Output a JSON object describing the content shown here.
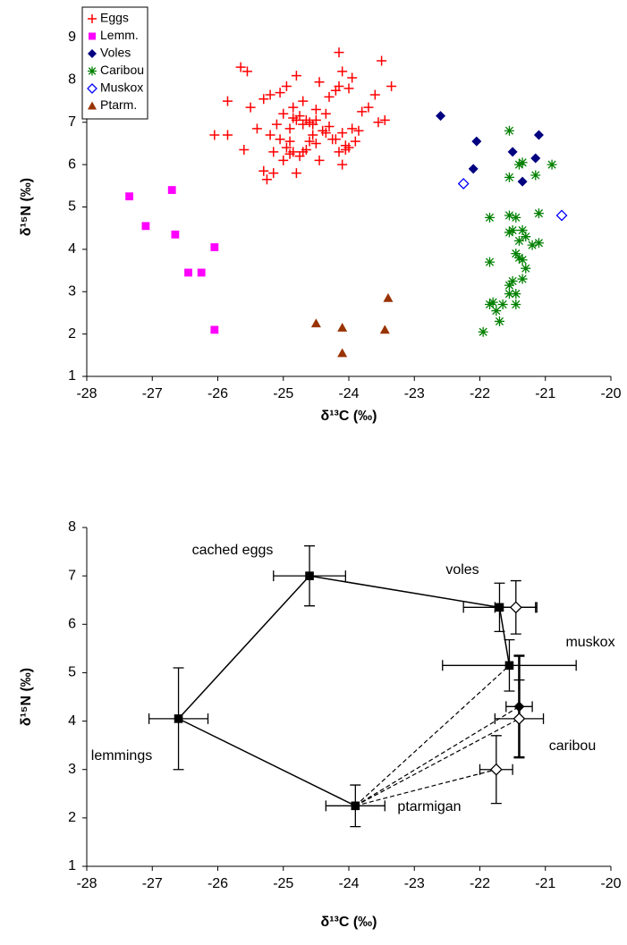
{
  "chart_data": [
    {
      "type": "scatter",
      "xlabel": "δ¹³C (‰)",
      "ylabel": "δ¹⁵N (‰)",
      "xlim": [
        -28,
        -20
      ],
      "ylim": [
        1,
        9
      ],
      "xticks": [
        -28,
        -27,
        -26,
        -25,
        -24,
        -23,
        -22,
        -21,
        -20
      ],
      "yticks": [
        1,
        2,
        3,
        4,
        5,
        6,
        7,
        8,
        9
      ],
      "legend": "top-left",
      "series": [
        {
          "name": "Eggs",
          "color": "#ff0000",
          "marker": "plus",
          "x": [
            -25.65,
            -25.55,
            -24.8,
            -24.15,
            -24.1,
            -23.95,
            -23.5,
            -23.35,
            -25.85,
            -25.5,
            -25.3,
            -25.2,
            -25.05,
            -24.95,
            -24.85,
            -24.7,
            -24.5,
            -24.45,
            -24.3,
            -24.2,
            -24.15,
            -24.0,
            -23.8,
            -23.7,
            -23.6,
            -23.55,
            -23.45,
            -26.05,
            -25.85,
            -25.6,
            -25.4,
            -25.2,
            -25.1,
            -25.0,
            -24.9,
            -24.85,
            -24.8,
            -24.75,
            -24.7,
            -24.65,
            -24.6,
            -24.55,
            -24.5,
            -24.4,
            -24.35,
            -24.3,
            -24.25,
            -24.1,
            -24.05,
            -23.95,
            -23.9,
            -23.85,
            -25.3,
            -25.25,
            -25.15,
            -25.0,
            -24.95,
            -24.9,
            -24.85,
            -24.8,
            -24.75,
            -24.7,
            -24.6,
            -24.5,
            -24.45,
            -24.2,
            -24.1,
            -24.05,
            -24.9,
            -25.05,
            -24.65,
            -24.55,
            -24.35,
            -24.15,
            -24.0,
            -25.15
          ],
          "y": [
            8.3,
            8.2,
            8.1,
            8.65,
            8.2,
            8.05,
            8.45,
            7.85,
            7.5,
            7.35,
            7.55,
            7.65,
            7.7,
            7.85,
            7.35,
            7.5,
            7.3,
            7.95,
            7.6,
            7.75,
            7.85,
            7.8,
            7.25,
            7.35,
            7.65,
            7.0,
            7.05,
            6.7,
            6.7,
            6.35,
            6.85,
            6.7,
            6.95,
            7.2,
            6.85,
            7.1,
            7.05,
            7.15,
            6.95,
            7.05,
            7.0,
            6.95,
            7.05,
            6.8,
            7.2,
            6.9,
            6.6,
            6.75,
            6.45,
            6.85,
            6.55,
            6.8,
            5.85,
            5.65,
            5.8,
            6.1,
            6.4,
            6.25,
            6.3,
            5.8,
            6.2,
            6.3,
            6.55,
            6.5,
            6.1,
            6.6,
            6.0,
            6.35,
            6.55,
            6.6,
            6.35,
            6.7,
            6.75,
            6.3,
            6.4,
            6.3
          ]
        },
        {
          "name": "Lemm.",
          "color": "#ff00ff",
          "marker": "square",
          "x": [
            -27.35,
            -27.1,
            -26.7,
            -26.65,
            -26.05,
            -26.45,
            -26.25,
            -26.05
          ],
          "y": [
            5.25,
            4.55,
            5.4,
            4.35,
            4.05,
            3.45,
            3.45,
            2.1
          ]
        },
        {
          "name": "Voles",
          "color": "#000080",
          "marker": "diamond",
          "x": [
            -22.6,
            -22.05,
            -21.5,
            -21.1,
            -22.1,
            -21.15,
            -21.35
          ],
          "y": [
            7.15,
            6.55,
            6.3,
            6.7,
            5.9,
            6.15,
            5.6
          ]
        },
        {
          "name": "Caribou",
          "color": "#008000",
          "marker": "asterisk",
          "x": [
            -21.55,
            -21.4,
            -21.35,
            -21.55,
            -21.15,
            -20.9,
            -21.85,
            -21.55,
            -21.45,
            -21.5,
            -21.55,
            -21.35,
            -21.3,
            -21.4,
            -21.1,
            -21.1,
            -21.2,
            -21.85,
            -21.45,
            -21.4,
            -21.35,
            -21.3,
            -21.5,
            -21.35,
            -21.55,
            -21.55,
            -21.45,
            -21.45,
            -21.65,
            -21.85,
            -21.8,
            -21.75,
            -21.7,
            -21.95
          ],
          "y": [
            6.8,
            6.0,
            6.05,
            5.7,
            5.75,
            6.0,
            4.75,
            4.8,
            4.75,
            4.45,
            4.4,
            4.45,
            4.3,
            4.2,
            4.85,
            4.15,
            4.1,
            3.7,
            3.9,
            3.8,
            3.75,
            3.55,
            3.25,
            3.3,
            3.15,
            2.95,
            2.95,
            2.7,
            2.7,
            2.7,
            2.75,
            2.55,
            2.3,
            2.05
          ]
        },
        {
          "name": "Muskox",
          "color": "#0000ff",
          "marker": "open-diamond",
          "x": [
            -22.25,
            -20.75
          ],
          "y": [
            5.55,
            4.8
          ]
        },
        {
          "name": "Ptarm.",
          "color": "#993300",
          "marker": "triangle",
          "x": [
            -24.5,
            -24.1,
            -24.1,
            -23.45,
            -23.4
          ],
          "y": [
            2.25,
            2.15,
            1.55,
            2.1,
            2.85
          ]
        }
      ]
    },
    {
      "type": "errorbar",
      "xlabel": "δ¹³C (‰)",
      "ylabel": "δ¹⁵N (‰)",
      "xlim": [
        -28,
        -20
      ],
      "ylim": [
        1,
        8
      ],
      "xticks": [
        -28,
        -27,
        -26,
        -25,
        -24,
        -23,
        -22,
        -21,
        -20
      ],
      "yticks": [
        1,
        2,
        3,
        4,
        5,
        6,
        7,
        8
      ],
      "color": "#000000",
      "points": [
        {
          "x": -26.6,
          "y": 4.05,
          "xerr": 0.45,
          "yerr": 1.05,
          "marker": "square"
        },
        {
          "x": -24.6,
          "y": 7.0,
          "xerr": 0.55,
          "yerr": 0.62,
          "marker": "square"
        },
        {
          "x": -21.7,
          "y": 6.35,
          "xerr": 0.55,
          "yerr": 0.5,
          "marker": "square"
        },
        {
          "x": -21.45,
          "y": 6.35,
          "xerr": 0.32,
          "yerr": 0.55,
          "marker": "open-diamond"
        },
        {
          "x": -23.9,
          "y": 2.25,
          "xerr": 0.45,
          "yerr": 0.43,
          "marker": "square"
        },
        {
          "x": -21.55,
          "y": 5.15,
          "xerr": 1.02,
          "yerr": 0.53,
          "marker": "square"
        },
        {
          "x": -21.4,
          "y": 4.3,
          "xerr": 0.2,
          "yerr": 1.05,
          "marker": "diamond"
        },
        {
          "x": -21.4,
          "y": 4.05,
          "xerr": 0.37,
          "yerr": 0.8,
          "marker": "open-diamond"
        },
        {
          "x": -21.75,
          "y": 3.0,
          "xerr": 0.25,
          "yerr": 0.7,
          "marker": "open-diamond"
        }
      ],
      "annotations": [
        "cached eggs",
        "voles",
        "muskox",
        "lemmings",
        "caribou",
        "ptarmigan"
      ]
    }
  ]
}
